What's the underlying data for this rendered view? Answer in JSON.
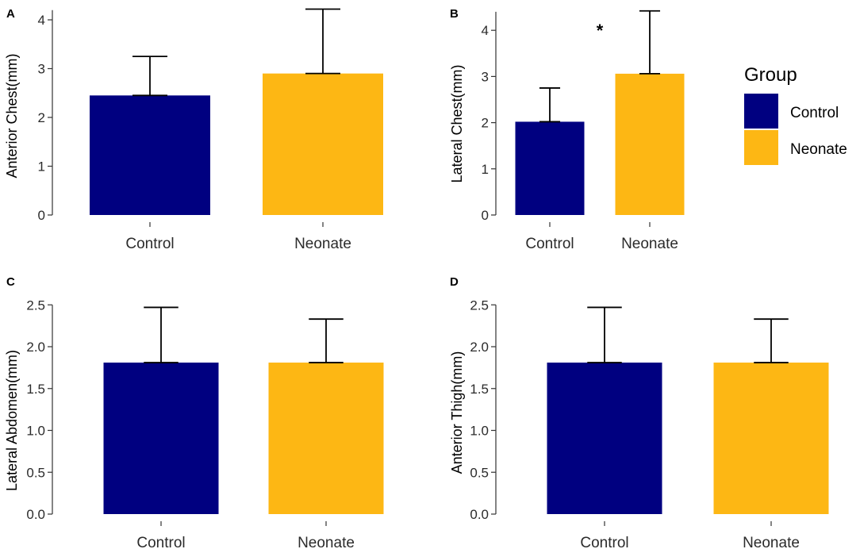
{
  "chart_data": [
    {
      "panel": "A",
      "type": "bar",
      "categories": [
        "Control",
        "Neonate"
      ],
      "values": [
        2.45,
        2.9
      ],
      "error_upper": [
        3.25,
        4.22
      ],
      "ylabel": "Anterior Chest(mm)",
      "ylim": [
        0,
        4.2
      ],
      "yticks": [
        0,
        1,
        2,
        3,
        4
      ],
      "ytick_labels": [
        "0",
        "1",
        "2",
        "3",
        "4"
      ],
      "annotation": ""
    },
    {
      "panel": "B",
      "type": "bar",
      "categories": [
        "Control",
        "Neonate"
      ],
      "values": [
        2.02,
        3.06
      ],
      "error_upper": [
        2.75,
        4.42
      ],
      "ylabel": "Lateral Chest(mm)",
      "ylim": [
        0,
        4.4
      ],
      "yticks": [
        0,
        1,
        2,
        3,
        4
      ],
      "ytick_labels": [
        "0",
        "1",
        "2",
        "3",
        "4"
      ],
      "annotation": "*"
    },
    {
      "panel": "C",
      "type": "bar",
      "categories": [
        "Control",
        "Neonate"
      ],
      "values": [
        1.81,
        1.81
      ],
      "error_upper": [
        2.47,
        2.33
      ],
      "ylabel": "Lateral Abdomen(mm)",
      "ylim": [
        0,
        2.5
      ],
      "yticks": [
        0,
        0.5,
        1,
        1.5,
        2,
        2.5
      ],
      "ytick_labels": [
        "0.0",
        "0.5",
        "1.0",
        "1.5",
        "2.0",
        "2.5"
      ],
      "annotation": ""
    },
    {
      "panel": "D",
      "type": "bar",
      "categories": [
        "Control",
        "Neonate"
      ],
      "values": [
        1.81,
        1.81
      ],
      "error_upper": [
        2.47,
        2.33
      ],
      "ylabel": "Anterior Thigh(mm)",
      "ylim": [
        0,
        2.5
      ],
      "yticks": [
        0,
        0.5,
        1,
        1.5,
        2,
        2.5
      ],
      "ytick_labels": [
        "0.0",
        "0.5",
        "1.0",
        "1.5",
        "2.0",
        "2.5"
      ],
      "annotation": ""
    }
  ],
  "legend": {
    "title": "Group",
    "items": [
      {
        "label": "Control",
        "color": "#000080"
      },
      {
        "label": "Neonate",
        "color": "#FDB714"
      }
    ]
  },
  "colors": {
    "control": "#000080",
    "neonate": "#FDB714"
  }
}
